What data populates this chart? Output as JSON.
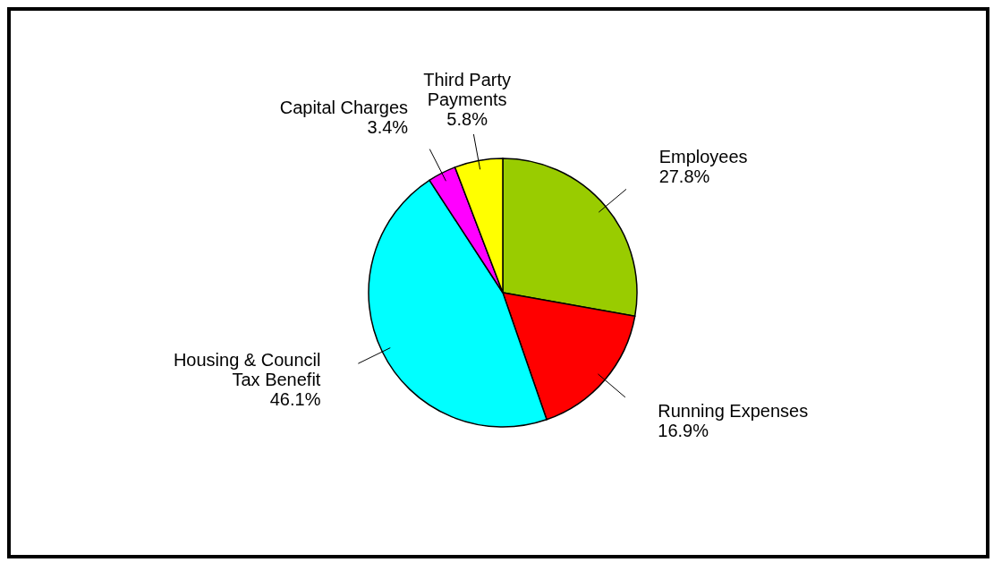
{
  "chart_data": {
    "type": "pie",
    "categories": [
      "Employees",
      "Running Expenses",
      "Housing & Council Tax Benefit",
      "Capital Charges",
      "Third Party Payments"
    ],
    "values": [
      27.8,
      16.9,
      46.1,
      3.4,
      5.8
    ],
    "value_labels": [
      "27.8%",
      "16.9%",
      "46.1%",
      "3.4%",
      "5.8%"
    ],
    "colors": [
      "#99cc00",
      "#ff0000",
      "#00ffff",
      "#ff00ff",
      "#ffff00"
    ]
  }
}
